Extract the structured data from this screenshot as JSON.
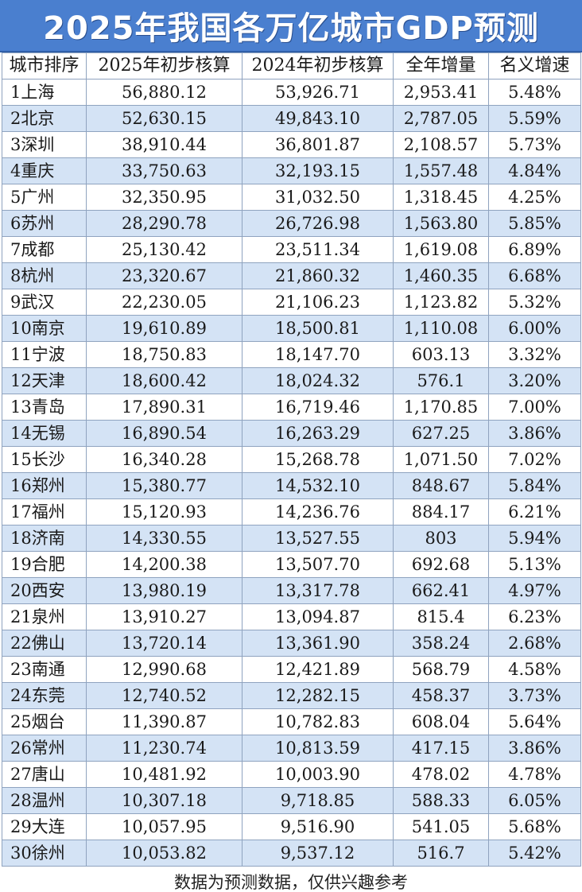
{
  "title": "2025年我国各万亿城市GDP预测",
  "headers": [
    "城市排序",
    "2025年初步核算",
    "2024年初步核算",
    "全年增量",
    "名义增速"
  ],
  "rows": [
    [
      "1上海",
      "56,880.12",
      "53,926.71",
      "2,953.41",
      "5.48%"
    ],
    [
      "2北京",
      "52,630.15",
      "49,843.10",
      "2,787.05",
      "5.59%"
    ],
    [
      "3深圳",
      "38,910.44",
      "36,801.87",
      "2,108.57",
      "5.73%"
    ],
    [
      "4重庆",
      "33,750.63",
      "32,193.15",
      "1,557.48",
      "4.84%"
    ],
    [
      "5广州",
      "32,350.95",
      "31,032.50",
      "1,318.45",
      "4.25%"
    ],
    [
      "6苏州",
      "28,290.78",
      "26,726.98",
      "1,563.80",
      "5.85%"
    ],
    [
      "7成都",
      "25,130.42",
      "23,511.34",
      "1,619.08",
      "6.89%"
    ],
    [
      "8杭州",
      "23,320.67",
      "21,860.32",
      "1,460.35",
      "6.68%"
    ],
    [
      "9武汉",
      "22,230.05",
      "21,106.23",
      "1,123.82",
      "5.32%"
    ],
    [
      "10南京",
      "19,610.89",
      "18,500.81",
      "1,110.08",
      "6.00%"
    ],
    [
      "11宁波",
      "18,750.83",
      "18,147.70",
      "603.13",
      "3.32%"
    ],
    [
      "12天津",
      "18,600.42",
      "18,024.32",
      "576.1",
      "3.20%"
    ],
    [
      "13青岛",
      "17,890.31",
      "16,719.46",
      "1,170.85",
      "7.00%"
    ],
    [
      "14无锡",
      "16,890.54",
      "16,263.29",
      "627.25",
      "3.86%"
    ],
    [
      "15长沙",
      "16,340.28",
      "15,268.78",
      "1,071.50",
      "7.02%"
    ],
    [
      "16郑州",
      "15,380.77",
      "14,532.10",
      "848.67",
      "5.84%"
    ],
    [
      "17福州",
      "15,120.93",
      "14,236.76",
      "884.17",
      "6.21%"
    ],
    [
      "18济南",
      "14,330.55",
      "13,527.55",
      "803",
      "5.94%"
    ],
    [
      "19合肥",
      "14,200.38",
      "13,507.70",
      "692.68",
      "5.13%"
    ],
    [
      "20西安",
      "13,980.19",
      "13,317.78",
      "662.41",
      "4.97%"
    ],
    [
      "21泉州",
      "13,910.27",
      "13,094.87",
      "815.4",
      "6.23%"
    ],
    [
      "22佛山",
      "13,720.14",
      "13,361.90",
      "358.24",
      "2.68%"
    ],
    [
      "23南通",
      "12,990.68",
      "12,421.89",
      "568.79",
      "4.58%"
    ],
    [
      "24东莞",
      "12,740.52",
      "12,282.15",
      "458.37",
      "3.73%"
    ],
    [
      "25烟台",
      "11,390.87",
      "10,782.83",
      "608.04",
      "5.64%"
    ],
    [
      "26常州",
      "11,230.74",
      "10,813.59",
      "417.15",
      "3.86%"
    ],
    [
      "27唐山",
      "10,481.92",
      "10,003.90",
      "478.02",
      "4.78%"
    ],
    [
      "28温州",
      "10,307.18",
      "9,718.85",
      "588.33",
      "6.05%"
    ],
    [
      "29大连",
      "10,057.95",
      "9,516.90",
      "541.05",
      "5.68%"
    ],
    [
      "30徐州",
      "10,053.82",
      "9,537.12",
      "516.7",
      "5.42%"
    ]
  ],
  "footnote": "数据为预测数据，仅供兴趣参考",
  "colors": {
    "title_background": "#4a7fcf",
    "title_text": "#ffffff",
    "stripe_row": "#d4e3f5",
    "grid_line": "#8fa3bf"
  }
}
